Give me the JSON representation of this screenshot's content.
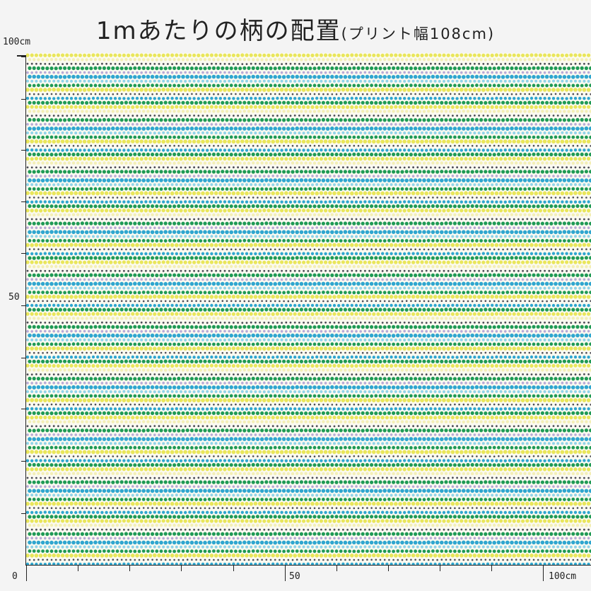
{
  "title": {
    "main": "1mあたりの柄の配置",
    "sub": "(プリント幅108cm)"
  },
  "axes": {
    "y_top_label": "100cm",
    "y_mid_label": "50",
    "origin_label": "0",
    "x_mid_label": "50",
    "x_end_label": "100cm"
  },
  "pattern": {
    "colors": {
      "background": "#fbfaf1",
      "green": "#1f9a55",
      "blue": "#2fa6cf",
      "yellow": "#e9e65a",
      "lavender": "#b8a9d6",
      "charcoal": "#4a4a55",
      "aqua": "#8fd3e8",
      "cream": "#f3efb6"
    }
  }
}
